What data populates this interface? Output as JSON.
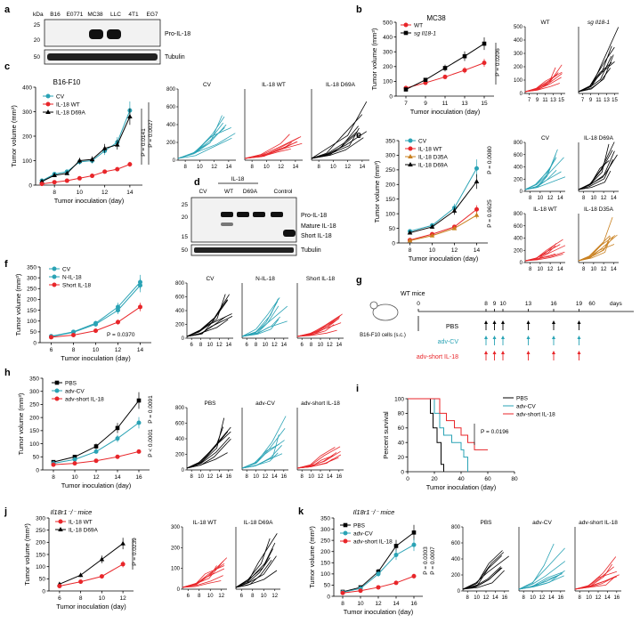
{
  "colors": {
    "cv": "#2aa3b5",
    "wt": "#e8262a",
    "black": "#000000",
    "d35a": "#c9801f",
    "red": "#e8262a",
    "grey": "#6b6b6b"
  },
  "a": {
    "letter": "a",
    "kda": "kDa",
    "lanes": [
      "B16",
      "E0771",
      "MC38",
      "LLC",
      "4T1",
      "EG7"
    ],
    "mw": [
      "25",
      "20",
      "50"
    ],
    "bands": [
      "Pro-IL-18",
      "Tubulin"
    ]
  },
  "b": {
    "letter": "b",
    "title": "MC38",
    "ylabel": "Tumor volume (mm³)",
    "xlabel": "Tumor inoculation (day)",
    "yticks": [
      "0",
      "100",
      "200",
      "300",
      "400",
      "500"
    ],
    "xticks": [
      "7",
      "9",
      "11",
      "13",
      "15"
    ],
    "legend": [
      "WT",
      "sg Il18-1"
    ],
    "pval": "P = 0.0206",
    "spag_titles": [
      "WT",
      "sg Il18-1"
    ],
    "spag_xticks": [
      "7",
      "9",
      "11",
      "13",
      "15"
    ],
    "spag_yticks": [
      "0",
      "100",
      "200",
      "300",
      "400",
      "500"
    ],
    "series": [
      {
        "name": "WT",
        "x": [
          7,
          9,
          11,
          13,
          15
        ],
        "y": [
          55,
          90,
          130,
          175,
          225
        ]
      },
      {
        "name": "sg Il18-1",
        "x": [
          7,
          9,
          11,
          13,
          15
        ],
        "y": [
          45,
          110,
          190,
          270,
          355
        ]
      }
    ]
  },
  "c": {
    "letter": "c",
    "title": "B16-F10",
    "ylabel": "Tumor volume (mm³)",
    "xlabel": "Tumor inoculation (day)",
    "yticks": [
      "0",
      "100",
      "200",
      "300",
      "400"
    ],
    "xticks": [
      "8",
      "10",
      "12",
      "14"
    ],
    "legend": [
      "CV",
      "IL-18 WT",
      "IL-18 D69A"
    ],
    "pvals": [
      "P = 0.0141",
      "P = 0.0027"
    ],
    "spag_titles": [
      "CV",
      "IL-18 WT",
      "IL-18 D69A"
    ],
    "spag_xticks": [
      "8",
      "10",
      "12",
      "14"
    ],
    "spag_yticks": [
      "0",
      "200",
      "400",
      "600",
      "800"
    ],
    "series": [
      {
        "name": "CV",
        "x": [
          7,
          8,
          9,
          10,
          11,
          12,
          13,
          14
        ],
        "y": [
          18,
          45,
          55,
          95,
          100,
          140,
          175,
          305
        ]
      },
      {
        "name": "IL-18 D69A",
        "x": [
          7,
          8,
          9,
          10,
          11,
          12,
          13,
          14
        ],
        "y": [
          15,
          40,
          48,
          100,
          105,
          150,
          165,
          280
        ]
      },
      {
        "name": "IL-18 WT",
        "x": [
          7,
          8,
          9,
          10,
          11,
          12,
          13,
          14
        ],
        "y": [
          5,
          12,
          18,
          28,
          38,
          55,
          65,
          85
        ]
      }
    ]
  },
  "d": {
    "letter": "d",
    "group": "IL-18",
    "lanes": [
      "CV",
      "WT",
      "D69A",
      "Control"
    ],
    "mw": [
      "25",
      "20",
      "15",
      "50"
    ],
    "bands": [
      "Pro-IL-18",
      "Mature IL-18",
      "Short IL-18",
      "Tubulin"
    ]
  },
  "e": {
    "letter": "e",
    "ylabel": "Tumor volume (mm³)",
    "xlabel": "Tumor inoculation (day)",
    "yticks": [
      "0",
      "50",
      "100",
      "150",
      "200",
      "250",
      "300",
      "350"
    ],
    "xticks": [
      "8",
      "10",
      "12",
      "14"
    ],
    "legend": [
      "CV",
      "IL-18 WT",
      "IL-18 D35A",
      "IL-18 D69A"
    ],
    "pvals": [
      "P = 0.0080",
      "P = 0.9625"
    ],
    "spag_titles": [
      "CV",
      "IL-18 D69A",
      "IL-18 WT",
      "IL-18 D35A"
    ],
    "spag_xticks": [
      "8",
      "10",
      "12",
      "14"
    ],
    "spag_yticks": [
      "0",
      "200",
      "400",
      "600",
      "800"
    ],
    "series": [
      {
        "name": "CV",
        "x": [
          8,
          10,
          12,
          14
        ],
        "y": [
          40,
          60,
          120,
          255
        ]
      },
      {
        "name": "IL-18 D69A",
        "x": [
          8,
          10,
          12,
          14
        ],
        "y": [
          35,
          55,
          110,
          210
        ]
      },
      {
        "name": "IL-18 WT",
        "x": [
          8,
          10,
          12,
          14
        ],
        "y": [
          10,
          30,
          55,
          115
        ]
      },
      {
        "name": "IL-18 D35A",
        "x": [
          8,
          10,
          12,
          14
        ],
        "y": [
          8,
          25,
          50,
          95
        ]
      }
    ]
  },
  "f": {
    "letter": "f",
    "ylabel": "Tumor volume (mm³)",
    "xlabel": "Tumor inoculation (day)",
    "yticks": [
      "0",
      "50",
      "100",
      "150",
      "200",
      "250",
      "300",
      "350"
    ],
    "xticks": [
      "6",
      "8",
      "10",
      "12",
      "14"
    ],
    "legend": [
      "CV",
      "N-IL-18",
      "Short IL-18"
    ],
    "pval": "P = 0.0370",
    "spag_titles": [
      "CV",
      "N-IL-18",
      "Short IL-18"
    ],
    "spag_xticks": [
      "6",
      "8",
      "10",
      "12",
      "14"
    ],
    "spag_yticks": [
      "0",
      "200",
      "400",
      "600",
      "800"
    ],
    "series": [
      {
        "name": "CV",
        "x": [
          6,
          8,
          10,
          12,
          14
        ],
        "y": [
          30,
          50,
          90,
          165,
          280
        ]
      },
      {
        "name": "N-IL-18",
        "x": [
          6,
          8,
          10,
          12,
          14
        ],
        "y": [
          28,
          48,
          85,
          150,
          265
        ]
      },
      {
        "name": "Short IL-18",
        "x": [
          6,
          8,
          10,
          12,
          14
        ],
        "y": [
          25,
          35,
          55,
          95,
          165
        ]
      }
    ]
  },
  "g": {
    "letter": "g",
    "mice": "WT mice",
    "cells": "B16-F10 cells (s.c.)",
    "days": [
      "0",
      "8",
      "9",
      "10",
      "13",
      "16",
      "19",
      "60"
    ],
    "unit": "days",
    "groups": [
      "PBS",
      "adv-CV",
      "adv-short IL-18"
    ]
  },
  "h": {
    "letter": "h",
    "ylabel": "Tumor volume (mm³)",
    "xlabel": "Tumor inoculation (day)",
    "yticks": [
      "0",
      "50",
      "100",
      "150",
      "200",
      "250",
      "300",
      "350"
    ],
    "xticks": [
      "8",
      "10",
      "12",
      "14",
      "16"
    ],
    "legend": [
      "PBS",
      "adv-CV",
      "adv-short IL-18"
    ],
    "pvals": [
      "P = 0.0091",
      "P < 0.0001"
    ],
    "spag_titles": [
      "PBS",
      "adv-CV",
      "adv-short IL-18"
    ],
    "spag_xticks": [
      "8",
      "10",
      "12",
      "14",
      "16"
    ],
    "spag_yticks": [
      "0",
      "200",
      "400",
      "600",
      "800"
    ],
    "series": [
      {
        "name": "PBS",
        "x": [
          8,
          10,
          12,
          14,
          16
        ],
        "y": [
          30,
          50,
          90,
          160,
          265
        ]
      },
      {
        "name": "adv-CV",
        "x": [
          8,
          10,
          12,
          14,
          16
        ],
        "y": [
          25,
          40,
          70,
          120,
          180
        ]
      },
      {
        "name": "adv-short IL-18",
        "x": [
          8,
          10,
          12,
          14,
          16
        ],
        "y": [
          20,
          25,
          35,
          50,
          70
        ]
      }
    ]
  },
  "i": {
    "letter": "i",
    "ylabel": "Percent survival",
    "xlabel": "Tumor inoculation (day)",
    "yticks": [
      "0",
      "20",
      "40",
      "60",
      "80",
      "100"
    ],
    "xticks": [
      "0",
      "20",
      "40",
      "60",
      "80"
    ],
    "legend": [
      "PBS",
      "adv-CV",
      "adv-short IL-18"
    ],
    "pval": "P = 0.0196",
    "series": [
      {
        "name": "PBS",
        "x": [
          0,
          17,
          19,
          22,
          25,
          27
        ],
        "y": [
          100,
          80,
          60,
          40,
          10,
          0
        ]
      },
      {
        "name": "adv-CV",
        "x": [
          0,
          20,
          24,
          27,
          33,
          40,
          42,
          45
        ],
        "y": [
          100,
          80,
          60,
          50,
          40,
          30,
          20,
          0
        ]
      },
      {
        "name": "adv-short IL-18",
        "x": [
          0,
          24,
          29,
          35,
          40,
          45,
          50,
          60
        ],
        "y": [
          100,
          80,
          70,
          60,
          50,
          40,
          30,
          30
        ]
      }
    ]
  },
  "j": {
    "letter": "j",
    "title": "Il18r1⁻/⁻ mice",
    "ylabel": "Tumor volume (mm³)",
    "xlabel": "Tumor inoculation (day)",
    "yticks": [
      "0",
      "50",
      "100",
      "150",
      "200",
      "250",
      "300"
    ],
    "xticks": [
      "6",
      "8",
      "10",
      "12"
    ],
    "legend": [
      "IL-18 WT",
      "IL-18 D69A"
    ],
    "pval": "P = 0.0239",
    "spag_titles": [
      "IL-18 WT",
      "IL-18 D69A"
    ],
    "spag_xticks": [
      "6",
      "8",
      "10",
      "12"
    ],
    "spag_yticks": [
      "0",
      "100",
      "200",
      "300"
    ],
    "series": [
      {
        "name": "IL-18 D69A",
        "x": [
          6,
          8,
          10,
          12
        ],
        "y": [
          28,
          65,
          130,
          195
        ]
      },
      {
        "name": "IL-18 WT",
        "x": [
          6,
          8,
          10,
          12
        ],
        "y": [
          20,
          38,
          60,
          110
        ]
      }
    ]
  },
  "k": {
    "letter": "k",
    "title": "Il18r1⁻/⁻ mice",
    "ylabel": "Tumor volume (mm³)",
    "xlabel": "Tumor inoculation (day)",
    "yticks": [
      "0",
      "50",
      "100",
      "150",
      "200",
      "250",
      "300",
      "350"
    ],
    "xticks": [
      "8",
      "10",
      "12",
      "14",
      "16"
    ],
    "legend": [
      "PBS",
      "adv-CV",
      "adv-short IL-18"
    ],
    "pvals": [
      "P = 0.0303",
      "P = 0.0007"
    ],
    "spag_titles": [
      "PBS",
      "adv-CV",
      "adv-short IL-18"
    ],
    "spag_xticks": [
      "8",
      "10",
      "12",
      "14",
      "16"
    ],
    "spag_yticks": [
      "0",
      "200",
      "400",
      "600",
      "800"
    ],
    "series": [
      {
        "name": "PBS",
        "x": [
          8,
          10,
          12,
          14,
          16
        ],
        "y": [
          20,
          40,
          110,
          225,
          285
        ]
      },
      {
        "name": "adv-CV",
        "x": [
          8,
          10,
          12,
          14,
          16
        ],
        "y": [
          18,
          35,
          100,
          185,
          230
        ]
      },
      {
        "name": "adv-short IL-18",
        "x": [
          8,
          10,
          12,
          14,
          16
        ],
        "y": [
          15,
          25,
          40,
          60,
          90
        ]
      }
    ]
  }
}
